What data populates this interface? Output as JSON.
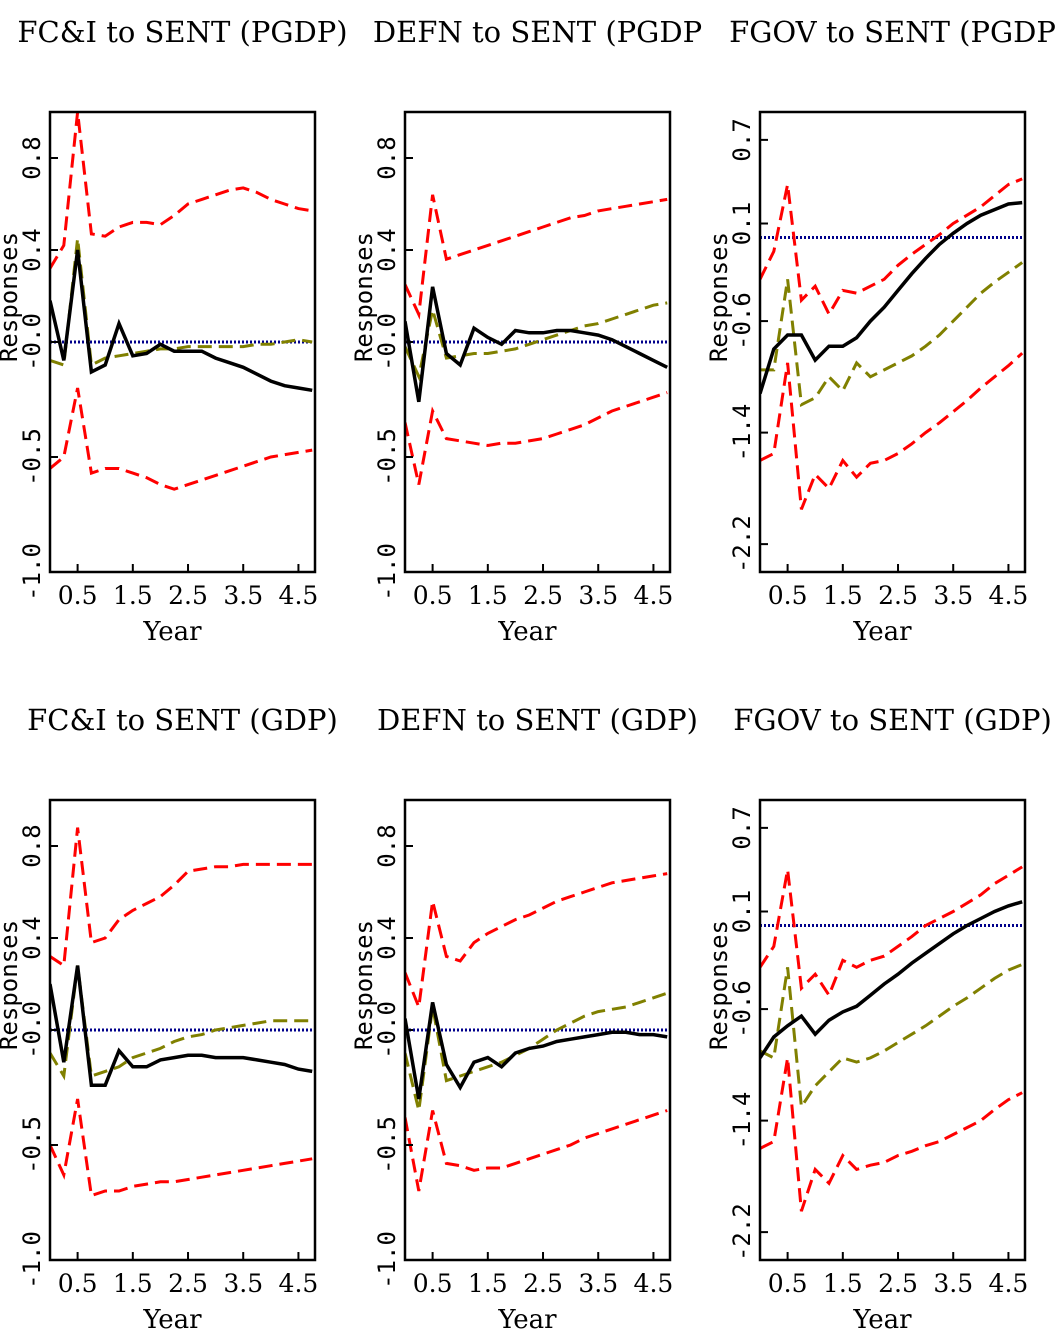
{
  "chart_data": [
    {
      "type": "line",
      "title": "FC&I to SENT (PGDP)",
      "xlabel": "Year",
      "ylabel": "Responses",
      "xlim": [
        0,
        4.8
      ],
      "ylim": [
        -1.0,
        1.0
      ],
      "x_ticks": [
        "0.5",
        "1.5",
        "2.5",
        "3.5",
        "4.5"
      ],
      "y_ticks": [
        "-1.0",
        "-0.5",
        "-0.0",
        "0.4",
        "0.8"
      ],
      "x": [
        0,
        0.25,
        0.5,
        0.75,
        1.0,
        1.25,
        1.5,
        1.75,
        2.0,
        2.25,
        2.5,
        2.75,
        3.0,
        3.25,
        3.5,
        3.75,
        4.0,
        4.25,
        4.5,
        4.75
      ],
      "series": [
        {
          "role": "zero",
          "color": "#00008b",
          "style": "dotted",
          "values": [
            0,
            0,
            0,
            0,
            0,
            0,
            0,
            0,
            0,
            0,
            0,
            0,
            0,
            0,
            0,
            0,
            0,
            0,
            0,
            0
          ]
        },
        {
          "role": "lower",
          "color": "#ff0000",
          "style": "dashed",
          "values": [
            -0.55,
            -0.5,
            -0.2,
            -0.57,
            -0.55,
            -0.55,
            -0.57,
            -0.59,
            -0.62,
            -0.64,
            -0.62,
            -0.6,
            -0.58,
            -0.56,
            -0.54,
            -0.52,
            -0.5,
            -0.49,
            -0.48,
            -0.47
          ]
        },
        {
          "role": "upper",
          "color": "#ff0000",
          "style": "dashed",
          "values": [
            0.32,
            0.42,
            1.0,
            0.47,
            0.46,
            0.5,
            0.52,
            0.52,
            0.51,
            0.55,
            0.6,
            0.62,
            0.64,
            0.66,
            0.67,
            0.65,
            0.62,
            0.6,
            0.58,
            0.57
          ]
        },
        {
          "role": "median",
          "color": "#808000",
          "style": "dashed",
          "values": [
            -0.08,
            -0.1,
            0.45,
            -0.1,
            -0.07,
            -0.06,
            -0.05,
            -0.04,
            -0.03,
            -0.03,
            -0.02,
            -0.02,
            -0.02,
            -0.02,
            -0.02,
            -0.01,
            -0.01,
            0.0,
            0.01,
            0.0
          ]
        },
        {
          "role": "point",
          "color": "#000000",
          "style": "solid",
          "values": [
            0.18,
            -0.08,
            0.4,
            -0.13,
            -0.1,
            0.08,
            -0.06,
            -0.05,
            -0.01,
            -0.04,
            -0.04,
            -0.04,
            -0.07,
            -0.09,
            -0.11,
            -0.14,
            -0.17,
            -0.19,
            -0.2,
            -0.21
          ]
        }
      ]
    },
    {
      "type": "line",
      "title": "DEFN to SENT (PGDP",
      "xlabel": "Year",
      "ylabel": "Responses",
      "xlim": [
        0,
        4.8
      ],
      "ylim": [
        -1.0,
        1.0
      ],
      "x_ticks": [
        "0.5",
        "1.5",
        "2.5",
        "3.5",
        "4.5"
      ],
      "y_ticks": [
        "-1.0",
        "-0.5",
        "-0.0",
        "0.4",
        "0.8"
      ],
      "x": [
        0,
        0.25,
        0.5,
        0.75,
        1.0,
        1.25,
        1.5,
        1.75,
        2.0,
        2.25,
        2.5,
        2.75,
        3.0,
        3.25,
        3.5,
        3.75,
        4.0,
        4.25,
        4.5,
        4.75
      ],
      "series": [
        {
          "role": "zero",
          "color": "#00008b",
          "style": "dotted",
          "values": [
            0,
            0,
            0,
            0,
            0,
            0,
            0,
            0,
            0,
            0,
            0,
            0,
            0,
            0,
            0,
            0,
            0,
            0,
            0,
            0
          ]
        },
        {
          "role": "lower",
          "color": "#ff0000",
          "style": "dashed",
          "values": [
            -0.35,
            -0.62,
            -0.3,
            -0.42,
            -0.43,
            -0.44,
            -0.45,
            -0.44,
            -0.44,
            -0.43,
            -0.42,
            -0.4,
            -0.38,
            -0.36,
            -0.33,
            -0.3,
            -0.28,
            -0.26,
            -0.24,
            -0.22
          ]
        },
        {
          "role": "upper",
          "color": "#ff0000",
          "style": "dashed",
          "values": [
            0.25,
            0.12,
            0.64,
            0.36,
            0.38,
            0.4,
            0.42,
            0.44,
            0.46,
            0.48,
            0.5,
            0.52,
            0.54,
            0.55,
            0.57,
            0.58,
            0.59,
            0.6,
            0.61,
            0.62
          ]
        },
        {
          "role": "median",
          "color": "#808000",
          "style": "dashed",
          "values": [
            -0.02,
            -0.15,
            0.14,
            -0.07,
            -0.06,
            -0.05,
            -0.05,
            -0.04,
            -0.03,
            -0.01,
            0.01,
            0.03,
            0.05,
            0.07,
            0.08,
            0.1,
            0.12,
            0.14,
            0.16,
            0.17
          ]
        },
        {
          "role": "point",
          "color": "#000000",
          "style": "solid",
          "values": [
            0.09,
            -0.26,
            0.24,
            -0.05,
            -0.1,
            0.06,
            0.02,
            -0.01,
            0.05,
            0.04,
            0.04,
            0.05,
            0.05,
            0.04,
            0.03,
            0.01,
            -0.02,
            -0.05,
            -0.08,
            -0.11
          ]
        }
      ]
    },
    {
      "type": "line",
      "title": "FGOV to SENT (PGDP",
      "xlabel": "Year",
      "ylabel": "Responses",
      "xlim": [
        0,
        4.8
      ],
      "ylim": [
        -2.4,
        0.9
      ],
      "x_ticks": [
        "0.5",
        "1.5",
        "2.5",
        "3.5",
        "4.5"
      ],
      "y_ticks": [
        "-2.2",
        "-1.4",
        "-0.6",
        "0.1",
        "0.7"
      ],
      "x": [
        0,
        0.25,
        0.5,
        0.75,
        1.0,
        1.25,
        1.5,
        1.75,
        2.0,
        2.25,
        2.5,
        2.75,
        3.0,
        3.25,
        3.5,
        3.75,
        4.0,
        4.25,
        4.5,
        4.75
      ],
      "series": [
        {
          "role": "zero",
          "color": "#00008b",
          "style": "dotted",
          "values": [
            0,
            0,
            0,
            0,
            0,
            0,
            0,
            0,
            0,
            0,
            0,
            0,
            0,
            0,
            0,
            0,
            0,
            0,
            0,
            0
          ]
        },
        {
          "role": "lower",
          "color": "#ff0000",
          "style": "dashed",
          "values": [
            -1.6,
            -1.55,
            -0.9,
            -1.95,
            -1.7,
            -1.8,
            -1.6,
            -1.72,
            -1.62,
            -1.6,
            -1.55,
            -1.48,
            -1.4,
            -1.33,
            -1.25,
            -1.17,
            -1.08,
            -1.0,
            -0.92,
            -0.83
          ]
        },
        {
          "role": "upper",
          "color": "#ff0000",
          "style": "dashed",
          "values": [
            -0.3,
            -0.1,
            0.38,
            -0.45,
            -0.35,
            -0.55,
            -0.38,
            -0.4,
            -0.35,
            -0.3,
            -0.2,
            -0.12,
            -0.05,
            0.02,
            0.1,
            0.16,
            0.22,
            0.3,
            0.38,
            0.42
          ]
        },
        {
          "role": "median",
          "color": "#808000",
          "style": "dashed",
          "values": [
            -0.95,
            -0.95,
            -0.3,
            -1.2,
            -1.15,
            -1.0,
            -1.1,
            -0.9,
            -1.0,
            -0.95,
            -0.9,
            -0.85,
            -0.78,
            -0.7,
            -0.6,
            -0.5,
            -0.4,
            -0.32,
            -0.25,
            -0.18
          ]
        },
        {
          "role": "point",
          "color": "#000000",
          "style": "solid",
          "values": [
            -1.12,
            -0.8,
            -0.7,
            -0.7,
            -0.88,
            -0.78,
            -0.78,
            -0.72,
            -0.6,
            -0.5,
            -0.38,
            -0.26,
            -0.15,
            -0.05,
            0.03,
            0.1,
            0.16,
            0.2,
            0.24,
            0.25
          ]
        }
      ]
    },
    {
      "type": "line",
      "title": "FC&I to SENT (GDP)",
      "xlabel": "Year",
      "ylabel": "Responses",
      "xlim": [
        0,
        4.8
      ],
      "ylim": [
        -1.0,
        1.0
      ],
      "x_ticks": [
        "0.5",
        "1.5",
        "2.5",
        "3.5",
        "4.5"
      ],
      "y_ticks": [
        "-1.0",
        "-0.5",
        "-0.0",
        "0.4",
        "0.8"
      ],
      "x": [
        0,
        0.25,
        0.5,
        0.75,
        1.0,
        1.25,
        1.5,
        1.75,
        2.0,
        2.25,
        2.5,
        2.75,
        3.0,
        3.25,
        3.5,
        3.75,
        4.0,
        4.25,
        4.5,
        4.75
      ],
      "series": [
        {
          "role": "zero",
          "color": "#00008b",
          "style": "dotted",
          "values": [
            0,
            0,
            0,
            0,
            0,
            0,
            0,
            0,
            0,
            0,
            0,
            0,
            0,
            0,
            0,
            0,
            0,
            0,
            0,
            0
          ]
        },
        {
          "role": "lower",
          "color": "#ff0000",
          "style": "dashed",
          "values": [
            -0.5,
            -0.63,
            -0.3,
            -0.72,
            -0.7,
            -0.7,
            -0.68,
            -0.67,
            -0.66,
            -0.66,
            -0.65,
            -0.64,
            -0.63,
            -0.62,
            -0.61,
            -0.6,
            -0.59,
            -0.58,
            -0.57,
            -0.56
          ]
        },
        {
          "role": "upper",
          "color": "#ff0000",
          "style": "dashed",
          "values": [
            0.32,
            0.28,
            0.88,
            0.38,
            0.4,
            0.48,
            0.52,
            0.55,
            0.58,
            0.63,
            0.69,
            0.7,
            0.71,
            0.71,
            0.72,
            0.72,
            0.72,
            0.72,
            0.72,
            0.72
          ]
        },
        {
          "role": "median",
          "color": "#808000",
          "style": "dashed",
          "values": [
            -0.1,
            -0.2,
            0.28,
            -0.2,
            -0.18,
            -0.16,
            -0.12,
            -0.1,
            -0.08,
            -0.05,
            -0.03,
            -0.02,
            0.0,
            0.01,
            0.02,
            0.03,
            0.04,
            0.04,
            0.04,
            0.04
          ]
        },
        {
          "role": "point",
          "color": "#000000",
          "style": "solid",
          "values": [
            0.2,
            -0.14,
            0.28,
            -0.24,
            -0.24,
            -0.09,
            -0.16,
            -0.16,
            -0.13,
            -0.12,
            -0.11,
            -0.11,
            -0.12,
            -0.12,
            -0.12,
            -0.13,
            -0.14,
            -0.15,
            -0.17,
            -0.18
          ]
        }
      ]
    },
    {
      "type": "line",
      "title": "DEFN to SENT (GDP)",
      "xlabel": "Year",
      "ylabel": "Responses",
      "xlim": [
        0,
        4.8
      ],
      "ylim": [
        -1.0,
        1.0
      ],
      "x_ticks": [
        "0.5",
        "1.5",
        "2.5",
        "3.5",
        "4.5"
      ],
      "y_ticks": [
        "-1.0",
        "-0.5",
        "-0.0",
        "0.4",
        "0.8"
      ],
      "x": [
        0,
        0.25,
        0.5,
        0.75,
        1.0,
        1.25,
        1.5,
        1.75,
        2.0,
        2.25,
        2.5,
        2.75,
        3.0,
        3.25,
        3.5,
        3.75,
        4.0,
        4.25,
        4.5,
        4.75
      ],
      "series": [
        {
          "role": "zero",
          "color": "#00008b",
          "style": "dotted",
          "values": [
            0,
            0,
            0,
            0,
            0,
            0,
            0,
            0,
            0,
            0,
            0,
            0,
            0,
            0,
            0,
            0,
            0,
            0,
            0,
            0
          ]
        },
        {
          "role": "lower",
          "color": "#ff0000",
          "style": "dashed",
          "values": [
            -0.38,
            -0.7,
            -0.35,
            -0.58,
            -0.59,
            -0.61,
            -0.6,
            -0.6,
            -0.58,
            -0.56,
            -0.54,
            -0.52,
            -0.5,
            -0.47,
            -0.45,
            -0.43,
            -0.41,
            -0.39,
            -0.37,
            -0.35
          ]
        },
        {
          "role": "upper",
          "color": "#ff0000",
          "style": "dashed",
          "values": [
            0.25,
            0.1,
            0.56,
            0.32,
            0.3,
            0.38,
            0.42,
            0.45,
            0.48,
            0.5,
            0.53,
            0.56,
            0.58,
            0.6,
            0.62,
            0.64,
            0.65,
            0.66,
            0.67,
            0.68
          ]
        },
        {
          "role": "median",
          "color": "#808000",
          "style": "dashed",
          "values": [
            -0.1,
            -0.35,
            0.1,
            -0.22,
            -0.2,
            -0.18,
            -0.16,
            -0.14,
            -0.11,
            -0.08,
            -0.04,
            0.0,
            0.03,
            0.06,
            0.08,
            0.09,
            0.1,
            0.12,
            0.14,
            0.16
          ]
        },
        {
          "role": "point",
          "color": "#000000",
          "style": "solid",
          "values": [
            0.05,
            -0.3,
            0.12,
            -0.15,
            -0.25,
            -0.14,
            -0.12,
            -0.16,
            -0.1,
            -0.08,
            -0.07,
            -0.05,
            -0.04,
            -0.03,
            -0.02,
            -0.01,
            -0.01,
            -0.02,
            -0.02,
            -0.03
          ]
        }
      ]
    },
    {
      "type": "line",
      "title": "FGOV to SENT (GDP)",
      "xlabel": "Year",
      "ylabel": "Responses",
      "xlim": [
        0,
        4.8
      ],
      "ylim": [
        -2.4,
        0.9
      ],
      "x_ticks": [
        "0.5",
        "1.5",
        "2.5",
        "3.5",
        "4.5"
      ],
      "y_ticks": [
        "-2.2",
        "-1.4",
        "-0.6",
        "0.1",
        "0.7"
      ],
      "x": [
        0,
        0.25,
        0.5,
        0.75,
        1.0,
        1.25,
        1.5,
        1.75,
        2.0,
        2.25,
        2.5,
        2.75,
        3.0,
        3.25,
        3.5,
        3.75,
        4.0,
        4.25,
        4.5,
        4.75
      ],
      "series": [
        {
          "role": "zero",
          "color": "#00008b",
          "style": "dotted",
          "values": [
            0,
            0,
            0,
            0,
            0,
            0,
            0,
            0,
            0,
            0,
            0,
            0,
            0,
            0,
            0,
            0,
            0,
            0,
            0,
            0
          ]
        },
        {
          "role": "lower",
          "color": "#ff0000",
          "style": "dashed",
          "values": [
            -1.6,
            -1.55,
            -0.95,
            -2.05,
            -1.75,
            -1.85,
            -1.65,
            -1.75,
            -1.72,
            -1.7,
            -1.65,
            -1.62,
            -1.58,
            -1.55,
            -1.5,
            -1.45,
            -1.4,
            -1.32,
            -1.25,
            -1.2
          ]
        },
        {
          "role": "upper",
          "color": "#ff0000",
          "style": "dashed",
          "values": [
            -0.3,
            -0.15,
            0.4,
            -0.45,
            -0.35,
            -0.5,
            -0.25,
            -0.3,
            -0.25,
            -0.22,
            -0.15,
            -0.08,
            0.0,
            0.05,
            0.1,
            0.16,
            0.22,
            0.3,
            0.36,
            0.42
          ]
        },
        {
          "role": "median",
          "color": "#808000",
          "style": "dashed",
          "values": [
            -0.9,
            -0.95,
            -0.3,
            -1.3,
            -1.15,
            -1.05,
            -0.95,
            -0.98,
            -0.95,
            -0.9,
            -0.84,
            -0.78,
            -0.72,
            -0.65,
            -0.58,
            -0.52,
            -0.45,
            -0.38,
            -0.32,
            -0.28
          ]
        },
        {
          "role": "point",
          "color": "#000000",
          "style": "solid",
          "values": [
            -0.95,
            -0.8,
            -0.72,
            -0.65,
            -0.78,
            -0.68,
            -0.62,
            -0.58,
            -0.5,
            -0.42,
            -0.35,
            -0.27,
            -0.2,
            -0.13,
            -0.06,
            0.0,
            0.05,
            0.1,
            0.14,
            0.17
          ]
        }
      ]
    }
  ]
}
